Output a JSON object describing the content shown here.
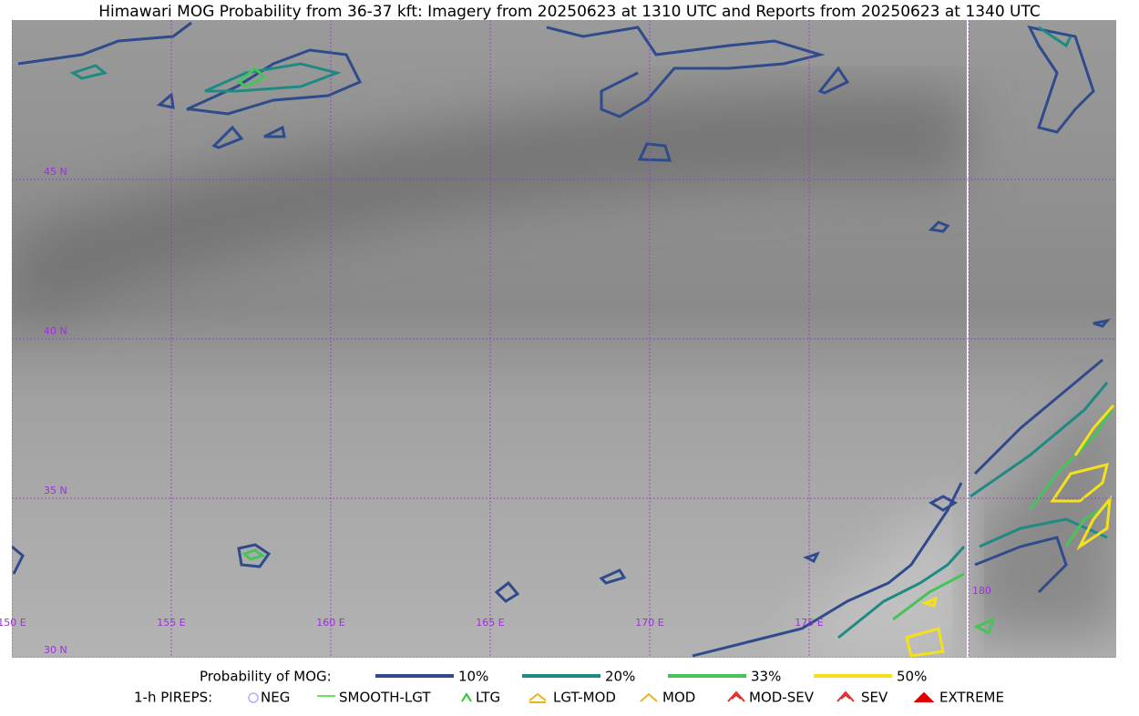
{
  "title": "Himawari MOG Probability from 36-37 kft: Imagery from 20250623 at 1310 UTC and Reports from 20250623 at 1340 UTC",
  "latitude_labels": [
    "45 N",
    "40 N",
    "35 N",
    "30 N"
  ],
  "longitude_labels": [
    "150 E",
    "155 E",
    "160 E",
    "165 E",
    "170 E",
    "175 E",
    "180"
  ],
  "legend": {
    "probability": {
      "label": "Probability of MOG:",
      "items": [
        {
          "label": "10%",
          "color": "#2f4b8c"
        },
        {
          "label": "20%",
          "color": "#1f8a84"
        },
        {
          "label": "33%",
          "color": "#46c45a"
        },
        {
          "label": "50%",
          "color": "#f5e11b"
        }
      ]
    },
    "pireps": {
      "label": "1-h PIREPS:",
      "items": [
        {
          "label": "NEG",
          "color": "#b0b0ff"
        },
        {
          "label": "SMOOTH-LGT",
          "color": "#33dd33"
        },
        {
          "label": "LTG",
          "color": "#22cc22"
        },
        {
          "label": "LGT-MOD",
          "color": "#f0b020"
        },
        {
          "label": "MOD",
          "color": "#f0b020"
        },
        {
          "label": "MOD-SEV",
          "color": "#e03030"
        },
        {
          "label": "SEV",
          "color": "#e03030"
        },
        {
          "label": "EXTREME",
          "color": "#e00000"
        }
      ]
    }
  }
}
